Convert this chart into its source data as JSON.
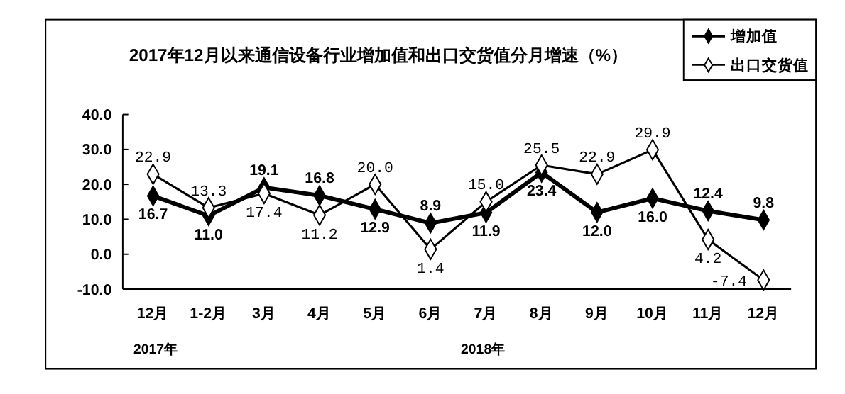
{
  "chart_data": {
    "type": "line",
    "title": "2017年12月以来通信设备行业增加值和出口交货值分月增速（%）",
    "categories": [
      "12月",
      "1-2月",
      "3月",
      "4月",
      "5月",
      "6月",
      "7月",
      "8月",
      "9月",
      "10月",
      "11月",
      "12月"
    ],
    "series": [
      {
        "name": "增加值",
        "color": "#000000",
        "values": [
          16.7,
          11.0,
          19.1,
          16.8,
          12.9,
          8.9,
          11.9,
          23.4,
          12.0,
          16.0,
          12.4,
          9.8
        ],
        "value_labels": [
          "16.7",
          "11.0",
          "19.1",
          "16.8",
          "12.9",
          "8.9",
          "11.9",
          "23.4",
          "12.0",
          "16.0",
          "12.4",
          "9.8"
        ]
      },
      {
        "name": "出口交货值",
        "color": "#000000",
        "values": [
          22.9,
          13.3,
          17.4,
          11.2,
          20.0,
          1.4,
          15.0,
          25.5,
          22.9,
          29.9,
          4.2,
          -7.4
        ],
        "value_labels": [
          "22.9",
          "13.3",
          "17.4",
          "11.2",
          "20.0",
          "1.4",
          "15.0",
          "25.5",
          "22.9",
          "29.9",
          "4.2",
          "-7.4"
        ]
      }
    ],
    "ylim": [
      -10,
      40
    ],
    "yticks": [
      {
        "value": -10,
        "label": "-10.0"
      },
      {
        "value": 0,
        "label": "0.0"
      },
      {
        "value": 10,
        "label": "10.0"
      },
      {
        "value": 20,
        "label": "20.0"
      },
      {
        "value": 30,
        "label": "30.0"
      },
      {
        "value": 40,
        "label": "40.0"
      }
    ],
    "annotations": [
      "2017年",
      "2018年"
    ],
    "legend": "top right",
    "marker": "diamond",
    "line_style": "solid",
    "grid": false
  }
}
